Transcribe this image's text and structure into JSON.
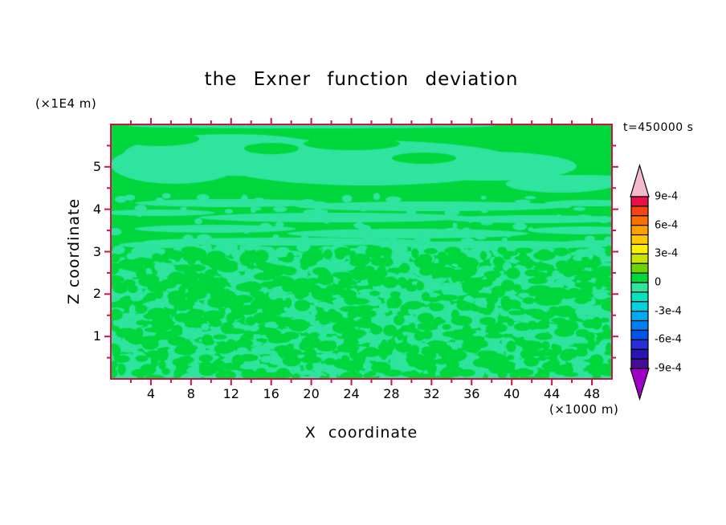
{
  "page": {
    "background_color": "#ffffff"
  },
  "chart_data": {
    "type": "heatmap",
    "subtype": "filled-contour",
    "title": "the Exner function deviation",
    "time_label": "t=450000 s",
    "x_axis": {
      "label": "X coordinate",
      "unit_label": "(×1000 m)",
      "range": [
        0,
        50
      ],
      "major_ticks": [
        4,
        8,
        12,
        16,
        20,
        24,
        28,
        32,
        36,
        40,
        44,
        48
      ],
      "minor_tick_step": 2
    },
    "y_axis": {
      "label": "Z coordinate",
      "unit_label": "(×1E4 m)",
      "range": [
        0,
        6
      ],
      "major_ticks": [
        1,
        2,
        3,
        4,
        5
      ],
      "minor_tick_step": 0.5
    },
    "frame_color": "#ce1245",
    "text_color": "#000000",
    "field": {
      "positive_color": "#00d73c",
      "negative_color": "#2ee49e",
      "contour_interval": 0.0001,
      "note": "Field values stay within -1e-4..+1e-4: mint green = slightly negative, bright green = slightly positive; smooth wavy bands aloft (z above ~3x10^4 m), fine speckled mixture below"
    },
    "colorbar": {
      "labels": [
        "9e-4",
        "6e-4",
        "3e-4",
        "0",
        "-3e-4",
        "-6e-4",
        "-9e-4"
      ],
      "segment_colors_top_to_bottom": [
        "#ec1048",
        "#f84314",
        "#fd7000",
        "#ffa000",
        "#ffc800",
        "#fff000",
        "#c8e400",
        "#6cd400",
        "#00d73c",
        "#2ee49e",
        "#00e4c0",
        "#00d2e0",
        "#00aaf0",
        "#0080f0",
        "#0055ea",
        "#2a2ed8",
        "#2a14b4",
        "#460c96"
      ],
      "over_arrow_color": "#f4b9cb",
      "under_arrow_color": "#a100c8"
    }
  }
}
